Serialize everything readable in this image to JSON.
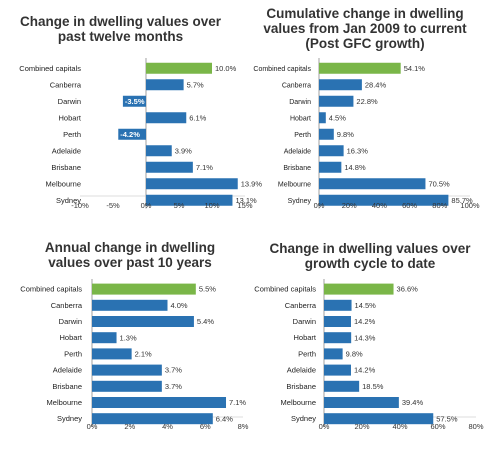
{
  "colors": {
    "highlight": "#7ab648",
    "bar": "#2a72b2",
    "axis": "#777777",
    "text": "#333333"
  },
  "chart_data": [
    {
      "type": "bar",
      "orientation": "horizontal",
      "title": "Change in dwelling values over past twelve months",
      "categories": [
        "Combined capitals",
        "Canberra",
        "Darwin",
        "Hobart",
        "Perth",
        "Adelaide",
        "Brisbane",
        "Melbourne",
        "Sydney"
      ],
      "values": [
        10.0,
        5.7,
        -3.5,
        6.1,
        -4.2,
        3.9,
        7.1,
        13.9,
        13.1
      ],
      "labels": [
        "10.0%",
        "5.7%",
        "-3.5%",
        "6.1%",
        "-4.2%",
        "3.9%",
        "7.1%",
        "13.9%",
        "13.1%"
      ],
      "highlight_index": 0,
      "xlim": [
        -10,
        15
      ],
      "xticks": [
        -10,
        -5,
        0,
        5,
        10,
        15
      ],
      "xtick_labels": [
        "-10%",
        "-5%",
        "0%",
        "5%",
        "10%",
        "15%"
      ]
    },
    {
      "type": "bar",
      "orientation": "horizontal",
      "title": "Cumulative change in dwelling values from Jan 2009 to current (Post GFC growth)",
      "categories": [
        "Combined capitals",
        "Canberra",
        "Darwin",
        "Hobart",
        "Perth",
        "Adelaide",
        "Brisbane",
        "Melbourne",
        "Sydney"
      ],
      "values": [
        54.1,
        28.4,
        22.8,
        4.5,
        9.8,
        16.3,
        14.8,
        70.5,
        85.7
      ],
      "labels": [
        "54.1%",
        "28.4%",
        "22.8%",
        "4.5%",
        "9.8%",
        "16.3%",
        "14.8%",
        "70.5%",
        "85.7%"
      ],
      "highlight_index": 0,
      "xlim": [
        0,
        100
      ],
      "xticks": [
        0,
        20,
        40,
        60,
        80,
        100
      ],
      "xtick_labels": [
        "0%",
        "20%",
        "40%",
        "60%",
        "80%",
        "100%"
      ]
    },
    {
      "type": "bar",
      "orientation": "horizontal",
      "title": "Annual change in dwelling values over past 10 years",
      "categories": [
        "Combined capitals",
        "Canberra",
        "Darwin",
        "Hobart",
        "Perth",
        "Adelaide",
        "Brisbane",
        "Melbourne",
        "Sydney"
      ],
      "values": [
        5.5,
        4.0,
        5.4,
        1.3,
        2.1,
        3.7,
        3.7,
        7.1,
        6.4
      ],
      "labels": [
        "5.5%",
        "4.0%",
        "5.4%",
        "1.3%",
        "2.1%",
        "3.7%",
        "3.7%",
        "7.1%",
        "6.4%"
      ],
      "highlight_index": 0,
      "xlim": [
        0,
        8
      ],
      "xticks": [
        0,
        2,
        4,
        6,
        8
      ],
      "xtick_labels": [
        "0%",
        "2%",
        "4%",
        "6%",
        "8%"
      ]
    },
    {
      "type": "bar",
      "orientation": "horizontal",
      "title": "Change in dwelling values over growth cycle to date",
      "categories": [
        "Combined capitals",
        "Canberra",
        "Darwin",
        "Hobart",
        "Perth",
        "Adelaide",
        "Brisbane",
        "Melbourne",
        "Sydney"
      ],
      "values": [
        36.6,
        14.5,
        14.2,
        14.3,
        9.8,
        14.2,
        18.5,
        39.4,
        57.5
      ],
      "labels": [
        "36.6%",
        "14.5%",
        "14.2%",
        "14.3%",
        "9.8%",
        "14.2%",
        "18.5%",
        "39.4%",
        "57.5%"
      ],
      "highlight_index": 0,
      "xlim": [
        0,
        80
      ],
      "xticks": [
        0,
        20,
        40,
        60,
        80
      ],
      "xtick_labels": [
        "0%",
        "20%",
        "40%",
        "60%",
        "80%"
      ]
    }
  ]
}
